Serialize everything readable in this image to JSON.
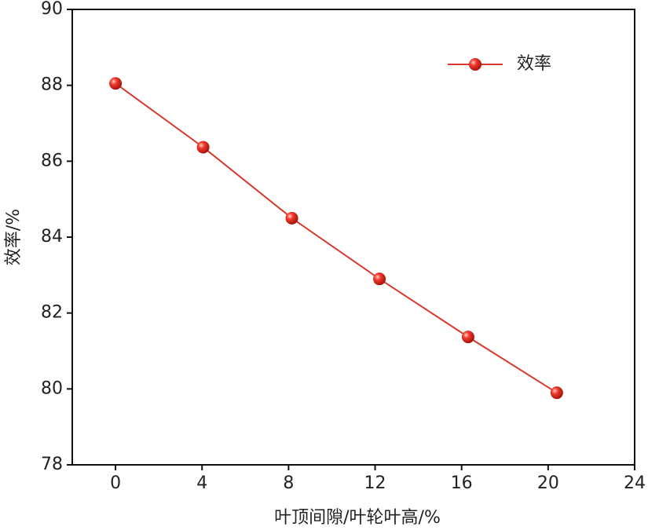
{
  "chart_data": {
    "type": "line",
    "x_label": "叶顶间隙/叶轮叶高/%",
    "y_label": "效率/%",
    "x": [
      0,
      4.05,
      8.15,
      12.2,
      16.3,
      20.4
    ],
    "series": [
      {
        "name": "效率",
        "color": "#d9382c",
        "values": [
          88.05,
          86.37,
          84.5,
          82.9,
          81.37,
          79.9
        ]
      }
    ],
    "xlim": [
      -2,
      24
    ],
    "xticks": [
      0,
      4,
      8,
      12,
      16,
      20,
      24
    ],
    "ylim": [
      78,
      90
    ],
    "yticks": [
      78,
      80,
      82,
      84,
      86,
      88,
      90
    ],
    "legend": "upper right"
  }
}
